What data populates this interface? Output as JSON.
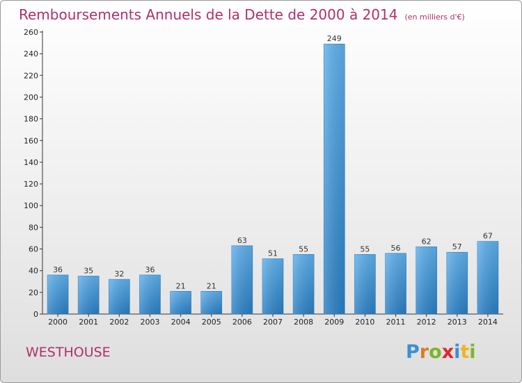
{
  "header": {
    "title": "Remboursements Annuels de la Dette de 2000 à 2014",
    "unit": "(en milliers d'€)"
  },
  "footer": {
    "commune": "WESTHOUSE",
    "logo": "Proxiti",
    "logo_letters": [
      {
        "char": "P",
        "color": "#3a8fd6"
      },
      {
        "char": "r",
        "color": "#e07a1c"
      },
      {
        "char": "o",
        "color": "#7ab62a"
      },
      {
        "char": "x",
        "color": "#e0262c"
      },
      {
        "char": "i",
        "color": "#3a8fd6"
      },
      {
        "char": "t",
        "color": "#f0b41c"
      },
      {
        "char": "i",
        "color": "#7ab62a"
      }
    ]
  },
  "colors": {
    "bar_top": "#5fb0ec",
    "bar_bottom": "#2a7fc4",
    "axis": "#333333",
    "grid": "#cccccc",
    "title": "#b0306a"
  },
  "chart_data": {
    "type": "bar",
    "title": "Remboursements Annuels de la Dette de 2000 à 2014",
    "subtitle": "(en milliers d'€)",
    "xlabel": "",
    "ylabel": "",
    "categories": [
      "2000",
      "2001",
      "2002",
      "2003",
      "2004",
      "2005",
      "2006",
      "2007",
      "2008",
      "2009",
      "2010",
      "2011",
      "2012",
      "2013",
      "2014"
    ],
    "values": [
      36,
      35,
      32,
      36,
      21,
      21,
      63,
      51,
      55,
      249,
      55,
      56,
      62,
      57,
      67
    ],
    "ylim": [
      0,
      260
    ],
    "yticks": [
      0,
      20,
      40,
      60,
      80,
      100,
      120,
      140,
      160,
      180,
      200,
      220,
      240,
      260
    ],
    "grid": false,
    "data_labels": true
  }
}
